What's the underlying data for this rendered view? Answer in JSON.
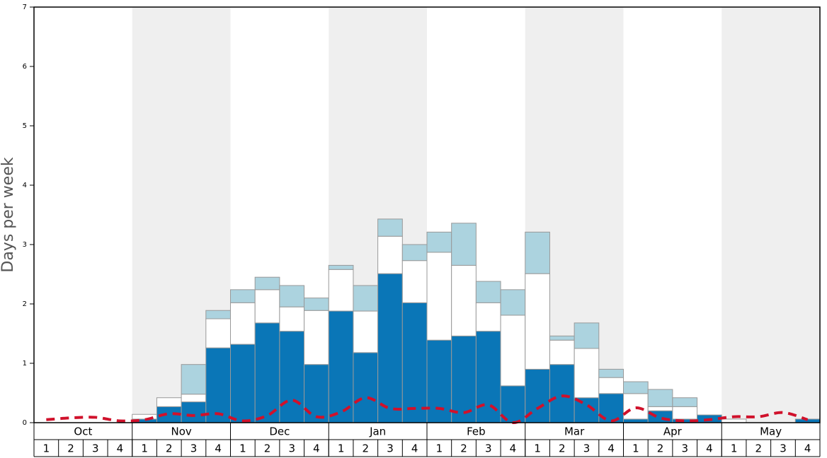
{
  "chart_data": {
    "type": "bar",
    "y_label": "Days per week",
    "ylim": [
      0,
      7
    ],
    "yticks": [
      0,
      1,
      2,
      3,
      4,
      5,
      6,
      7
    ],
    "months": [
      "Oct",
      "Nov",
      "Dec",
      "Jan",
      "Feb",
      "Mar",
      "Apr",
      "May"
    ],
    "weeks": [
      "1",
      "2",
      "3",
      "4",
      "1",
      "2",
      "3",
      "4",
      "1",
      "2",
      "3",
      "4",
      "1",
      "2",
      "3",
      "4",
      "1",
      "2",
      "3",
      "4",
      "1",
      "2",
      "3",
      "4",
      "1",
      "2",
      "3",
      "4",
      "1",
      "2",
      "3",
      "4"
    ],
    "series": [
      {
        "type": "bar",
        "color": "#0a76b7",
        "values": [
          0,
          0,
          0,
          0,
          0.06,
          0.27,
          0.35,
          1.26,
          1.32,
          1.68,
          1.54,
          0.98,
          1.88,
          1.18,
          2.51,
          2.02,
          1.39,
          1.46,
          1.54,
          0.62,
          0.9,
          0.98,
          0.42,
          0.49,
          0.06,
          0.2,
          0.06,
          0.13,
          0,
          0,
          0,
          0.06
        ]
      },
      {
        "type": "bar",
        "color": "#ffffff",
        "values": [
          0,
          0,
          0,
          0,
          0.08,
          0.15,
          0.13,
          0.49,
          0.7,
          0.56,
          0.41,
          0.91,
          0.7,
          0.7,
          0.63,
          0.71,
          1.48,
          1.19,
          0.48,
          1.19,
          1.61,
          0.41,
          0.83,
          0.27,
          0.43,
          0.07,
          0.21,
          0,
          0.06,
          0,
          0,
          0
        ]
      },
      {
        "type": "bar",
        "color": "#acd3df",
        "values": [
          0,
          0,
          0,
          0,
          0,
          0,
          0.5,
          0.14,
          0.22,
          0.21,
          0.36,
          0.21,
          0.07,
          0.43,
          0.29,
          0.27,
          0.34,
          0.71,
          0.36,
          0.43,
          0.7,
          0.07,
          0.43,
          0.14,
          0.2,
          0.29,
          0.15,
          0,
          0,
          0,
          0,
          0
        ]
      },
      {
        "type": "line",
        "color": "#d0112b",
        "values": [
          0.05,
          0.08,
          0.09,
          0.03,
          0.05,
          0.15,
          0.12,
          0.15,
          0.03,
          0.12,
          0.38,
          0.1,
          0.18,
          0.42,
          0.24,
          0.24,
          0.24,
          0.17,
          0.3,
          0.0,
          0.24,
          0.45,
          0.3,
          0.03,
          0.25,
          0.08,
          0.03,
          0.05,
          0.1,
          0.1,
          0.17,
          0.05
        ]
      }
    ]
  }
}
